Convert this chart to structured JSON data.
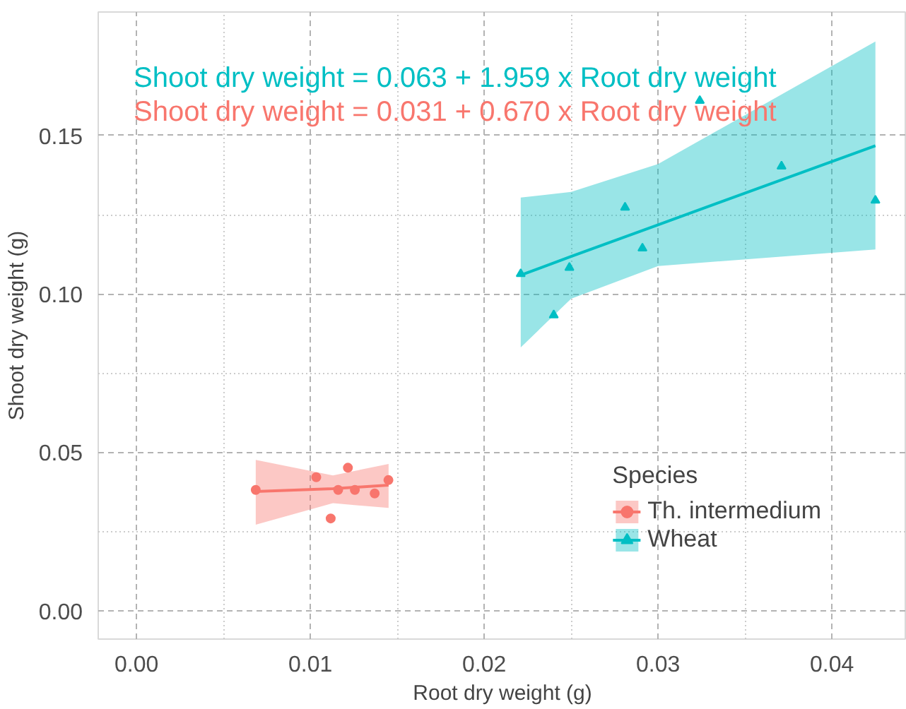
{
  "chart_data": {
    "type": "scatter",
    "xlabel": "Root dry weight (g)",
    "ylabel": "Shoot dry weight (g)",
    "legend_title": "Species",
    "legend": "bottom right",
    "grid": true,
    "xlim": [
      -0.0022,
      0.0443
    ],
    "ylim": [
      -0.009,
      0.189
    ],
    "xticks": [
      {
        "value": 0,
        "label": "0.00"
      },
      0.01,
      0.02,
      0.03,
      0.04
    ],
    "yticks": [
      {
        "value": 0,
        "label": "0.00"
      },
      0.05,
      {
        "value": 0.1,
        "label": "0.10"
      },
      0.15
    ],
    "annotations": [
      "Shoot dry weight = 0.063 + 1.959 x Root dry weight",
      "Shoot dry weight = 0.031 + 0.670 x Root dry weight"
    ],
    "series": [
      {
        "name": "Th. intermedium",
        "marker": "circle",
        "color": "#f8766d",
        "x": [
          0.00686,
          0.01034,
          0.01216,
          0.0116,
          0.01256,
          0.0137,
          0.01449,
          0.01117
        ],
        "values": [
          0.0381,
          0.0421,
          0.0451,
          0.0381,
          0.0381,
          0.037,
          0.0412,
          0.0291
        ]
      },
      {
        "type": "line",
        "color": "#f8766d",
        "x": [
          0.00686,
          0.0113,
          0.0145
        ],
        "values": [
          0.0376,
          0.0385,
          0.0396
        ],
        "lower": [
          0.0271,
          0.0339,
          0.0324
        ],
        "upper": [
          0.0476,
          0.0427,
          0.0463
        ]
      },
      {
        "name": "Wheat",
        "marker": "triangle",
        "color": "#00bfc4",
        "x": [
          0.0221,
          0.024,
          0.0249,
          0.0281,
          0.0291,
          0.0324,
          0.0371,
          0.0425
        ],
        "values": [
          0.1063,
          0.0933,
          0.1083,
          0.1273,
          0.1144,
          0.161,
          0.1403,
          0.1295
        ]
      },
      {
        "type": "line",
        "color": "#00bfc4",
        "x": [
          0.0221,
          0.025,
          0.03,
          0.0425
        ],
        "values": [
          0.1059,
          0.1118,
          0.1218,
          0.1468
        ],
        "lower": [
          0.0831,
          0.0985,
          0.1088,
          0.114
        ],
        "upper": [
          0.1304,
          0.1322,
          0.141,
          0.1797
        ]
      }
    ]
  }
}
